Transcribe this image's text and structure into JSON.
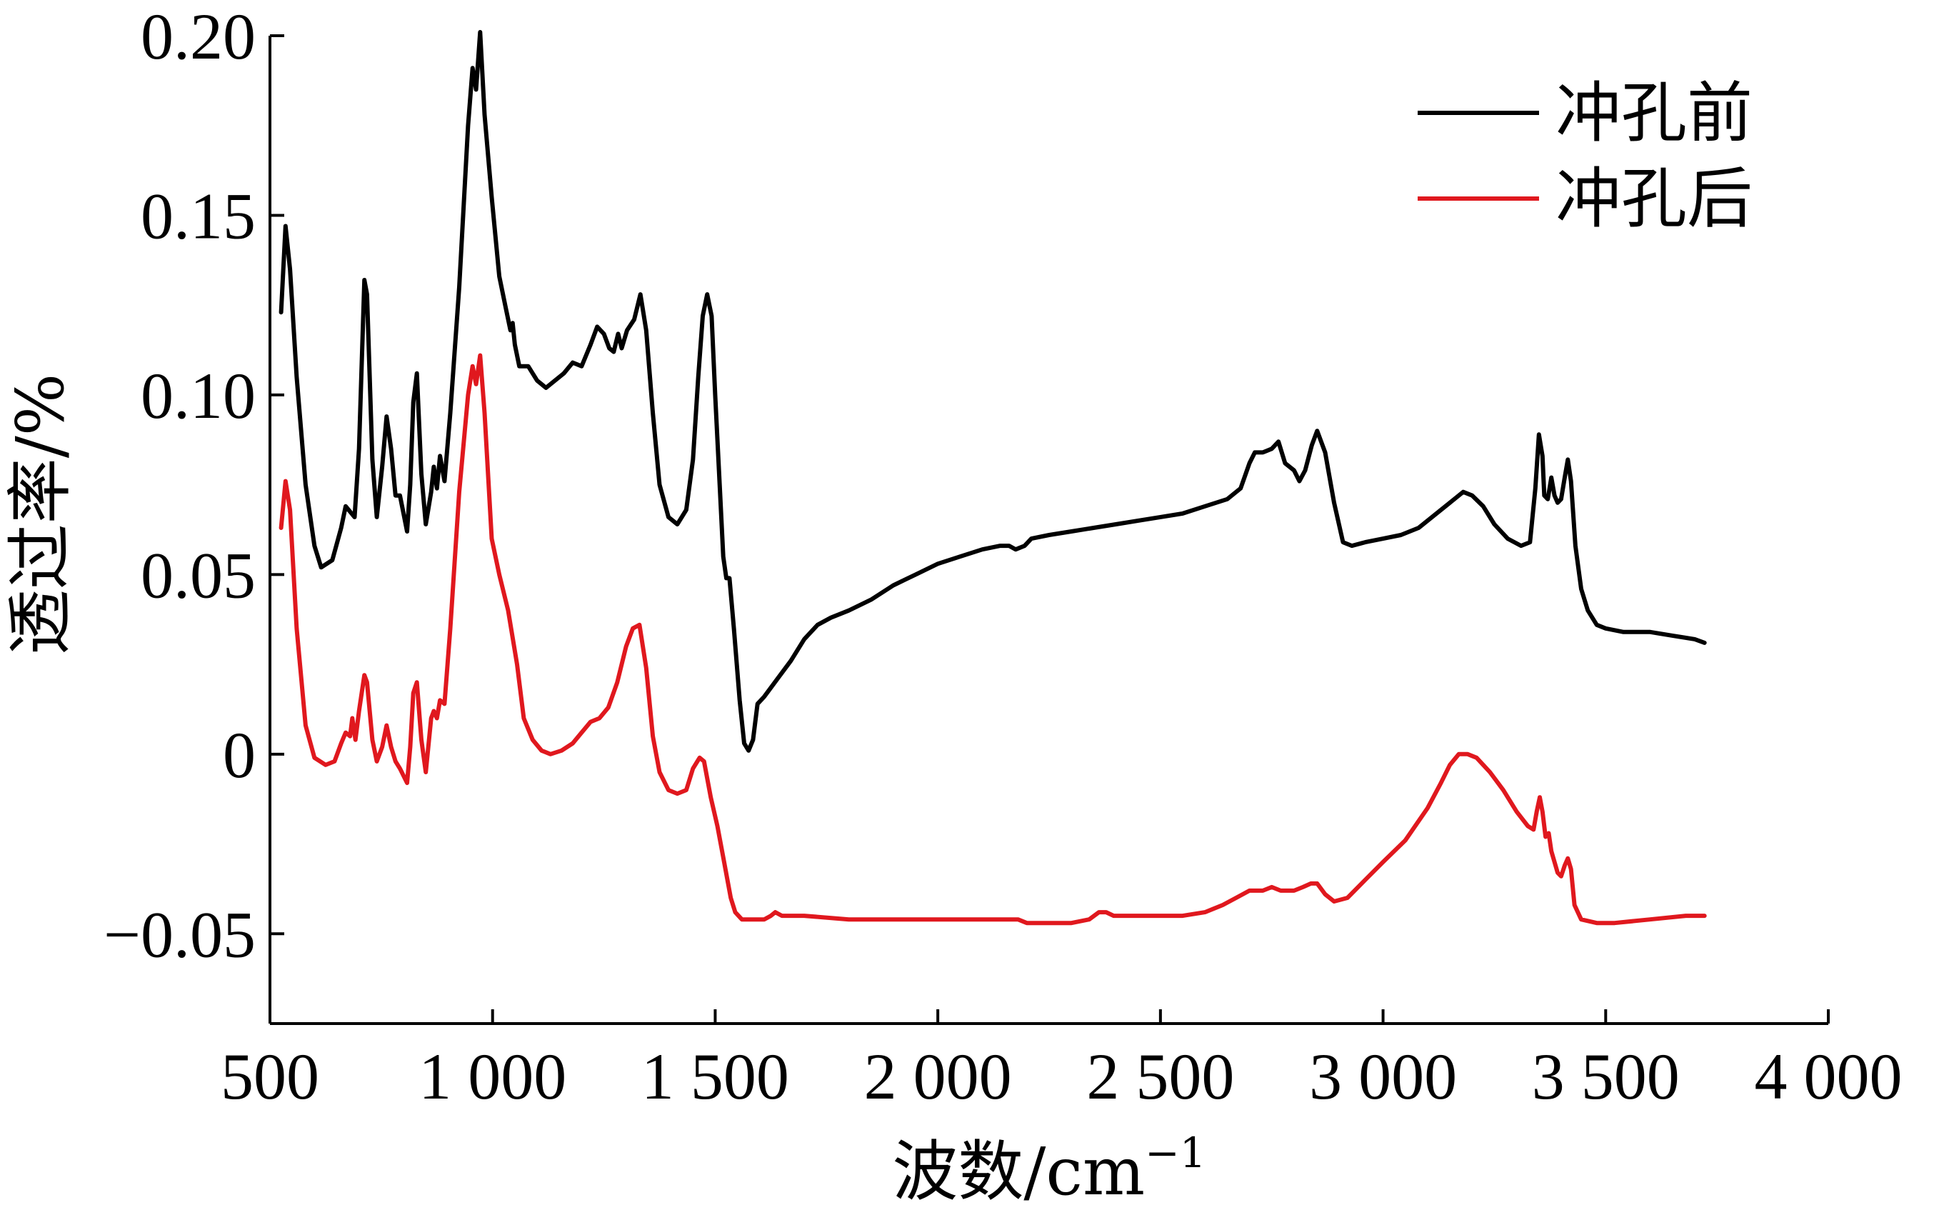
{
  "chart_data": {
    "type": "line",
    "title": "",
    "xlabel": "波数/cm",
    "xlabel_superscript": "−1",
    "ylabel": "透过率/%",
    "xlim": [
      500,
      4000
    ],
    "ylim": [
      -0.075,
      0.2
    ],
    "x_ticks": [
      500,
      1000,
      1500,
      2000,
      2500,
      3000,
      3500,
      4000
    ],
    "x_tick_labels": [
      "500",
      "1 000",
      "1 500",
      "2 000",
      "2 500",
      "3 000",
      "3 500",
      "4 000"
    ],
    "y_ticks": [
      -0.05,
      0,
      0.05,
      0.1,
      0.15,
      0.2
    ],
    "y_tick_labels": [
      "−0.05",
      "0",
      "0.05",
      "0.10",
      "0.15",
      "0.20"
    ],
    "grid": false,
    "legend_position": "top-right",
    "series": [
      {
        "name": "冲孔前",
        "color": "#000000",
        "points": [
          [
            525,
            0.123
          ],
          [
            535,
            0.147
          ],
          [
            545,
            0.135
          ],
          [
            560,
            0.105
          ],
          [
            580,
            0.075
          ],
          [
            600,
            0.058
          ],
          [
            615,
            0.052
          ],
          [
            640,
            0.054
          ],
          [
            660,
            0.063
          ],
          [
            670,
            0.069
          ],
          [
            690,
            0.066
          ],
          [
            700,
            0.085
          ],
          [
            712,
            0.132
          ],
          [
            718,
            0.128
          ],
          [
            730,
            0.082
          ],
          [
            740,
            0.066
          ],
          [
            752,
            0.08
          ],
          [
            762,
            0.094
          ],
          [
            772,
            0.085
          ],
          [
            782,
            0.072
          ],
          [
            792,
            0.072
          ],
          [
            808,
            0.062
          ],
          [
            815,
            0.075
          ],
          [
            822,
            0.098
          ],
          [
            830,
            0.106
          ],
          [
            840,
            0.078
          ],
          [
            850,
            0.064
          ],
          [
            862,
            0.073
          ],
          [
            868,
            0.08
          ],
          [
            875,
            0.074
          ],
          [
            882,
            0.083
          ],
          [
            892,
            0.076
          ],
          [
            905,
            0.095
          ],
          [
            925,
            0.13
          ],
          [
            945,
            0.175
          ],
          [
            955,
            0.191
          ],
          [
            963,
            0.185
          ],
          [
            972,
            0.201
          ],
          [
            982,
            0.178
          ],
          [
            998,
            0.155
          ],
          [
            1015,
            0.133
          ],
          [
            1030,
            0.124
          ],
          [
            1040,
            0.118
          ],
          [
            1045,
            0.12
          ],
          [
            1050,
            0.114
          ],
          [
            1060,
            0.108
          ],
          [
            1080,
            0.108
          ],
          [
            1100,
            0.104
          ],
          [
            1120,
            0.102
          ],
          [
            1140,
            0.104
          ],
          [
            1160,
            0.106
          ],
          [
            1180,
            0.109
          ],
          [
            1200,
            0.108
          ],
          [
            1220,
            0.114
          ],
          [
            1235,
            0.119
          ],
          [
            1250,
            0.117
          ],
          [
            1262,
            0.113
          ],
          [
            1272,
            0.112
          ],
          [
            1282,
            0.117
          ],
          [
            1290,
            0.113
          ],
          [
            1302,
            0.118
          ],
          [
            1318,
            0.121
          ],
          [
            1332,
            0.128
          ],
          [
            1345,
            0.118
          ],
          [
            1360,
            0.095
          ],
          [
            1375,
            0.075
          ],
          [
            1395,
            0.066
          ],
          [
            1415,
            0.064
          ],
          [
            1435,
            0.068
          ],
          [
            1450,
            0.082
          ],
          [
            1462,
            0.105
          ],
          [
            1472,
            0.122
          ],
          [
            1482,
            0.128
          ],
          [
            1492,
            0.122
          ],
          [
            1500,
            0.1
          ],
          [
            1510,
            0.075
          ],
          [
            1518,
            0.055
          ],
          [
            1525,
            0.049
          ],
          [
            1532,
            0.049
          ],
          [
            1542,
            0.035
          ],
          [
            1555,
            0.015
          ],
          [
            1565,
            0.003
          ],
          [
            1575,
            0.001
          ],
          [
            1585,
            0.004
          ],
          [
            1595,
            0.014
          ],
          [
            1610,
            0.016
          ],
          [
            1640,
            0.021
          ],
          [
            1670,
            0.026
          ],
          [
            1700,
            0.032
          ],
          [
            1730,
            0.036
          ],
          [
            1760,
            0.038
          ],
          [
            1800,
            0.04
          ],
          [
            1850,
            0.043
          ],
          [
            1900,
            0.047
          ],
          [
            1950,
            0.05
          ],
          [
            2000,
            0.053
          ],
          [
            2050,
            0.055
          ],
          [
            2100,
            0.057
          ],
          [
            2140,
            0.058
          ],
          [
            2160,
            0.058
          ],
          [
            2175,
            0.057
          ],
          [
            2195,
            0.058
          ],
          [
            2210,
            0.06
          ],
          [
            2250,
            0.061
          ],
          [
            2300,
            0.062
          ],
          [
            2350,
            0.063
          ],
          [
            2400,
            0.064
          ],
          [
            2450,
            0.065
          ],
          [
            2500,
            0.066
          ],
          [
            2550,
            0.067
          ],
          [
            2600,
            0.069
          ],
          [
            2650,
            0.071
          ],
          [
            2680,
            0.074
          ],
          [
            2700,
            0.081
          ],
          [
            2712,
            0.084
          ],
          [
            2730,
            0.084
          ],
          [
            2750,
            0.085
          ],
          [
            2765,
            0.087
          ],
          [
            2780,
            0.081
          ],
          [
            2800,
            0.079
          ],
          [
            2812,
            0.076
          ],
          [
            2825,
            0.079
          ],
          [
            2840,
            0.086
          ],
          [
            2852,
            0.09
          ],
          [
            2870,
            0.084
          ],
          [
            2890,
            0.07
          ],
          [
            2910,
            0.059
          ],
          [
            2930,
            0.058
          ],
          [
            2960,
            0.059
          ],
          [
            3000,
            0.06
          ],
          [
            3040,
            0.061
          ],
          [
            3080,
            0.063
          ],
          [
            3120,
            0.067
          ],
          [
            3160,
            0.071
          ],
          [
            3180,
            0.073
          ],
          [
            3200,
            0.072
          ],
          [
            3225,
            0.069
          ],
          [
            3250,
            0.064
          ],
          [
            3280,
            0.06
          ],
          [
            3310,
            0.058
          ],
          [
            3330,
            0.059
          ],
          [
            3342,
            0.074
          ],
          [
            3350,
            0.089
          ],
          [
            3358,
            0.083
          ],
          [
            3362,
            0.072
          ],
          [
            3370,
            0.071
          ],
          [
            3378,
            0.077
          ],
          [
            3385,
            0.072
          ],
          [
            3392,
            0.07
          ],
          [
            3400,
            0.071
          ],
          [
            3408,
            0.077
          ],
          [
            3415,
            0.082
          ],
          [
            3422,
            0.076
          ],
          [
            3432,
            0.058
          ],
          [
            3445,
            0.046
          ],
          [
            3460,
            0.04
          ],
          [
            3480,
            0.036
          ],
          [
            3500,
            0.035
          ],
          [
            3540,
            0.034
          ],
          [
            3600,
            0.034
          ],
          [
            3650,
            0.033
          ],
          [
            3700,
            0.032
          ],
          [
            3722,
            0.031
          ]
        ]
      },
      {
        "name": "冲孔后",
        "color": "#e0181e",
        "points": [
          [
            525,
            0.063
          ],
          [
            535,
            0.076
          ],
          [
            545,
            0.068
          ],
          [
            560,
            0.035
          ],
          [
            580,
            0.008
          ],
          [
            600,
            -0.001
          ],
          [
            625,
            -0.003
          ],
          [
            645,
            -0.002
          ],
          [
            660,
            0.003
          ],
          [
            670,
            0.006
          ],
          [
            680,
            0.005
          ],
          [
            685,
            0.01
          ],
          [
            692,
            0.004
          ],
          [
            700,
            0.012
          ],
          [
            712,
            0.022
          ],
          [
            718,
            0.02
          ],
          [
            730,
            0.004
          ],
          [
            740,
            -0.002
          ],
          [
            752,
            0.002
          ],
          [
            762,
            0.008
          ],
          [
            772,
            0.002
          ],
          [
            782,
            -0.002
          ],
          [
            792,
            -0.004
          ],
          [
            808,
            -0.008
          ],
          [
            815,
            0.002
          ],
          [
            822,
            0.017
          ],
          [
            830,
            0.02
          ],
          [
            840,
            0.004
          ],
          [
            850,
            -0.005
          ],
          [
            862,
            0.01
          ],
          [
            868,
            0.012
          ],
          [
            875,
            0.01
          ],
          [
            882,
            0.015
          ],
          [
            892,
            0.014
          ],
          [
            905,
            0.035
          ],
          [
            925,
            0.073
          ],
          [
            945,
            0.1
          ],
          [
            955,
            0.108
          ],
          [
            963,
            0.103
          ],
          [
            972,
            0.111
          ],
          [
            982,
            0.095
          ],
          [
            998,
            0.06
          ],
          [
            1015,
            0.05
          ],
          [
            1035,
            0.04
          ],
          [
            1055,
            0.025
          ],
          [
            1070,
            0.01
          ],
          [
            1090,
            0.004
          ],
          [
            1110,
            0.001
          ],
          [
            1130,
            0.0
          ],
          [
            1155,
            0.001
          ],
          [
            1180,
            0.003
          ],
          [
            1200,
            0.006
          ],
          [
            1220,
            0.009
          ],
          [
            1240,
            0.01
          ],
          [
            1260,
            0.013
          ],
          [
            1280,
            0.02
          ],
          [
            1300,
            0.03
          ],
          [
            1315,
            0.035
          ],
          [
            1330,
            0.036
          ],
          [
            1345,
            0.024
          ],
          [
            1360,
            0.005
          ],
          [
            1375,
            -0.005
          ],
          [
            1395,
            -0.01
          ],
          [
            1415,
            -0.011
          ],
          [
            1435,
            -0.01
          ],
          [
            1450,
            -0.004
          ],
          [
            1465,
            -0.001
          ],
          [
            1475,
            -0.002
          ],
          [
            1490,
            -0.012
          ],
          [
            1505,
            -0.02
          ],
          [
            1520,
            -0.03
          ],
          [
            1535,
            -0.04
          ],
          [
            1545,
            -0.044
          ],
          [
            1560,
            -0.046
          ],
          [
            1585,
            -0.046
          ],
          [
            1610,
            -0.046
          ],
          [
            1625,
            -0.045
          ],
          [
            1635,
            -0.044
          ],
          [
            1650,
            -0.045
          ],
          [
            1700,
            -0.045
          ],
          [
            1800,
            -0.046
          ],
          [
            1900,
            -0.046
          ],
          [
            2000,
            -0.046
          ],
          [
            2100,
            -0.046
          ],
          [
            2180,
            -0.046
          ],
          [
            2200,
            -0.047
          ],
          [
            2250,
            -0.047
          ],
          [
            2300,
            -0.047
          ],
          [
            2340,
            -0.046
          ],
          [
            2362,
            -0.044
          ],
          [
            2378,
            -0.044
          ],
          [
            2395,
            -0.045
          ],
          [
            2450,
            -0.045
          ],
          [
            2550,
            -0.045
          ],
          [
            2600,
            -0.044
          ],
          [
            2640,
            -0.042
          ],
          [
            2670,
            -0.04
          ],
          [
            2700,
            -0.038
          ],
          [
            2730,
            -0.038
          ],
          [
            2750,
            -0.037
          ],
          [
            2770,
            -0.038
          ],
          [
            2800,
            -0.038
          ],
          [
            2820,
            -0.037
          ],
          [
            2838,
            -0.036
          ],
          [
            2852,
            -0.036
          ],
          [
            2870,
            -0.039
          ],
          [
            2890,
            -0.041
          ],
          [
            2920,
            -0.04
          ],
          [
            2960,
            -0.035
          ],
          [
            3000,
            -0.03
          ],
          [
            3050,
            -0.024
          ],
          [
            3100,
            -0.015
          ],
          [
            3130,
            -0.008
          ],
          [
            3150,
            -0.003
          ],
          [
            3170,
            0.0
          ],
          [
            3190,
            0.0
          ],
          [
            3210,
            -0.001
          ],
          [
            3240,
            -0.005
          ],
          [
            3270,
            -0.01
          ],
          [
            3300,
            -0.016
          ],
          [
            3325,
            -0.02
          ],
          [
            3338,
            -0.021
          ],
          [
            3345,
            -0.016
          ],
          [
            3352,
            -0.012
          ],
          [
            3358,
            -0.016
          ],
          [
            3365,
            -0.023
          ],
          [
            3372,
            -0.022
          ],
          [
            3378,
            -0.027
          ],
          [
            3392,
            -0.033
          ],
          [
            3400,
            -0.034
          ],
          [
            3408,
            -0.031
          ],
          [
            3415,
            -0.029
          ],
          [
            3422,
            -0.032
          ],
          [
            3430,
            -0.042
          ],
          [
            3445,
            -0.046
          ],
          [
            3480,
            -0.047
          ],
          [
            3520,
            -0.047
          ],
          [
            3600,
            -0.046
          ],
          [
            3680,
            -0.045
          ],
          [
            3722,
            -0.045
          ]
        ]
      }
    ]
  }
}
